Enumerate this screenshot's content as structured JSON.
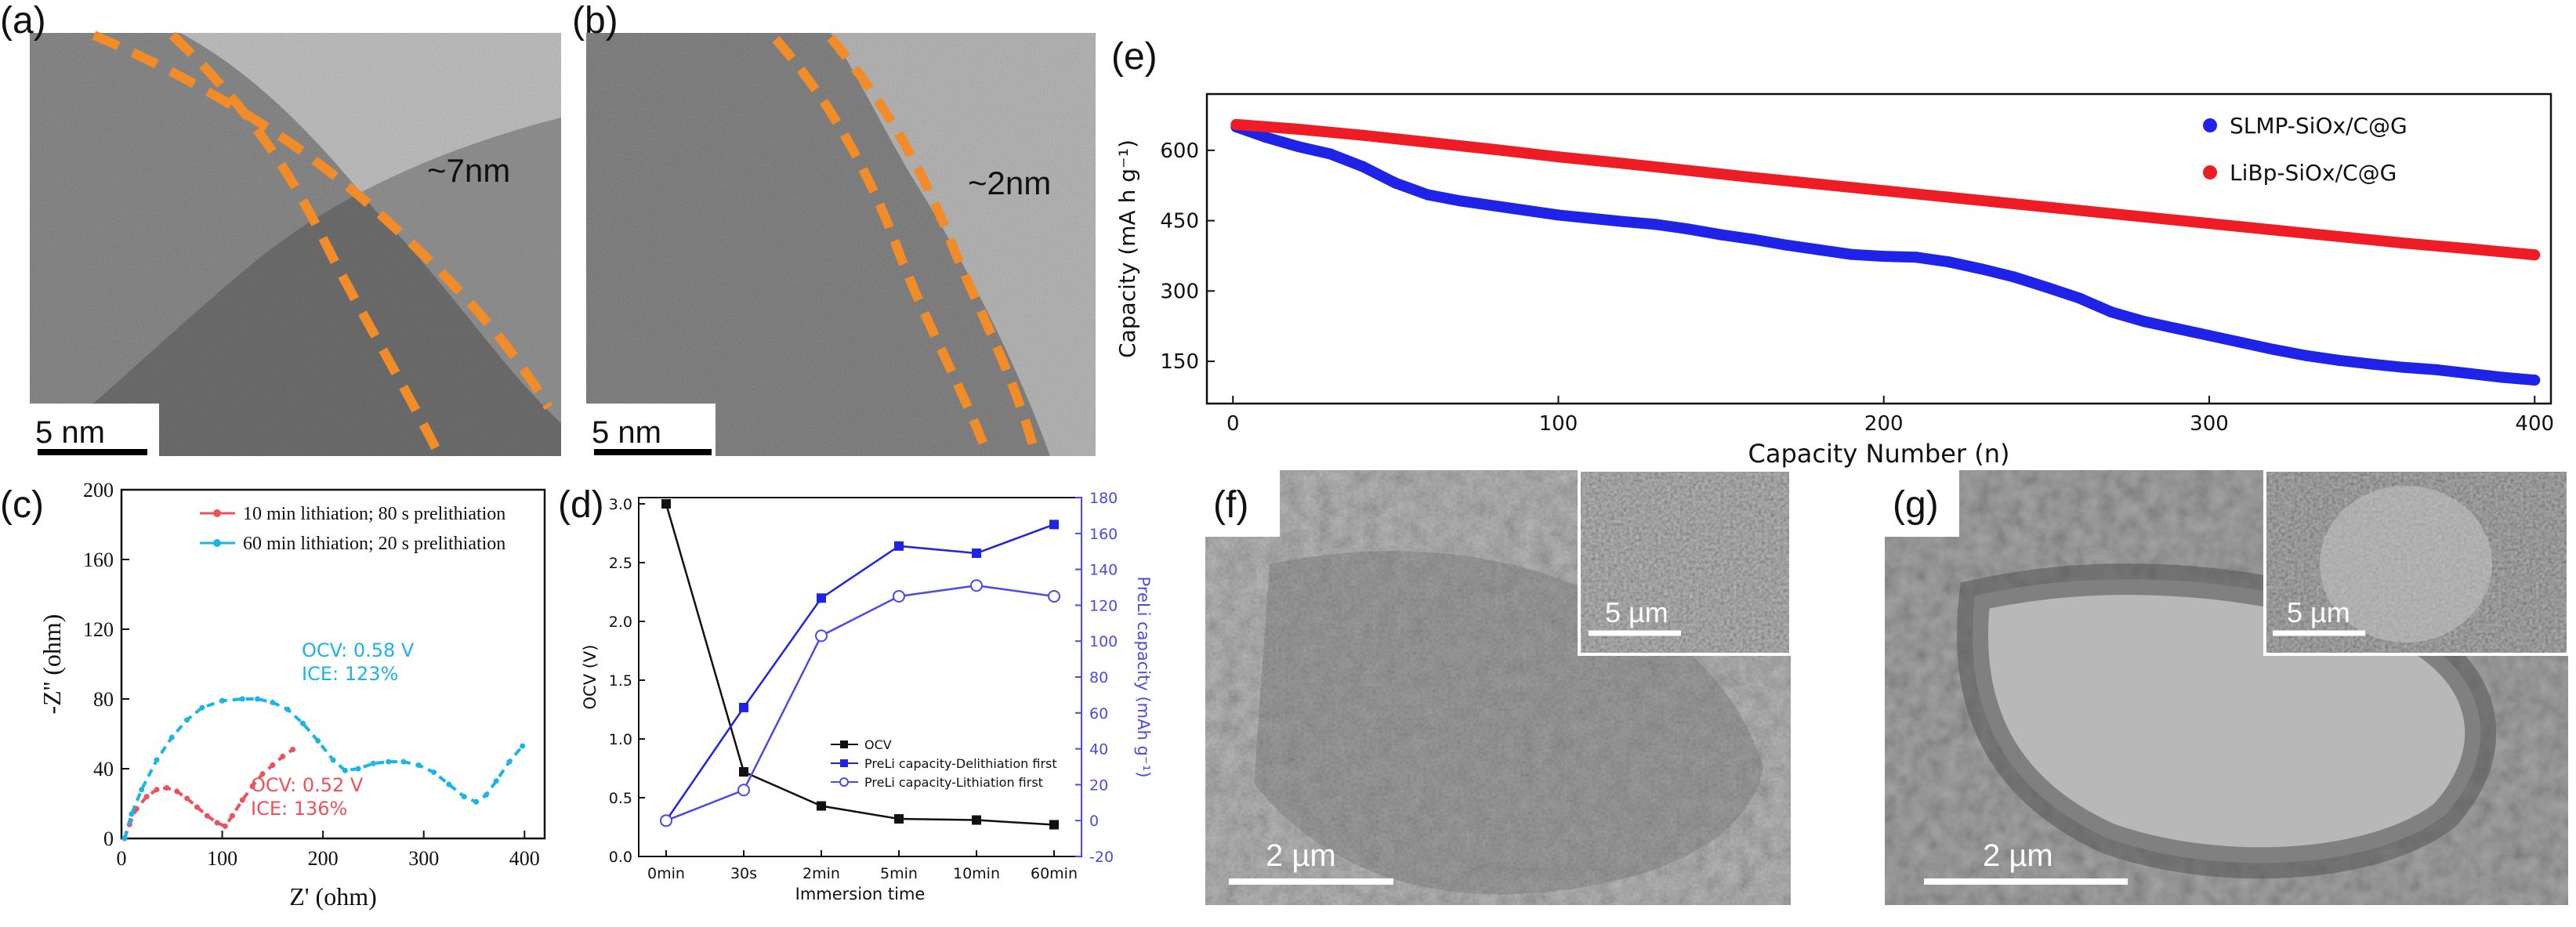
{
  "panel_labels": {
    "a": "(a)",
    "b": "(b)",
    "c": "(c)",
    "d": "(d)",
    "e": "(e)",
    "f": "(f)",
    "g": "(g)"
  },
  "micrographs": {
    "a": {
      "annotation": "~7nm",
      "scale_bar": "5 nm"
    },
    "b": {
      "annotation": "~2nm",
      "scale_bar": "5 nm"
    },
    "f": {
      "scale_bar": "2 µm",
      "inset_scale_bar": "5 µm"
    },
    "g": {
      "scale_bar": "2 µm",
      "inset_scale_bar": "5 µm"
    }
  },
  "colors": {
    "orange": "#f28c28",
    "blue": "#1f23e8",
    "red": "#ee1c25",
    "cyan": "#19b5e8",
    "pink_red": "#f0505a",
    "black": "#111111",
    "purple_blue": "#4a4af0"
  },
  "chart_data": [
    {
      "id": "c",
      "type": "line",
      "xlabel": "Z' (ohm)",
      "ylabel": "-Z'' (ohm)",
      "xlim": [
        0,
        420
      ],
      "ylim": [
        0,
        200
      ],
      "xticks": [
        0,
        100,
        200,
        300,
        400
      ],
      "yticks": [
        0,
        40,
        80,
        120,
        160,
        200
      ],
      "legend_position": "top-right",
      "series": [
        {
          "name": "10 min lithiation; 80 s prelithiation",
          "color": "#f0505a",
          "x": [
            3,
            8,
            15,
            25,
            35,
            45,
            55,
            65,
            75,
            85,
            95,
            103,
            110,
            120,
            130,
            140,
            150,
            160,
            170
          ],
          "y": [
            0,
            8,
            17,
            24,
            28,
            29,
            27,
            23,
            18,
            13,
            9,
            7,
            13,
            22,
            30,
            37,
            42,
            47,
            51
          ]
        },
        {
          "name": "60 min lithiation; 20 s prelithiation",
          "color": "#19b5e8",
          "x": [
            3,
            10,
            20,
            35,
            50,
            65,
            80,
            100,
            120,
            135,
            150,
            165,
            180,
            195,
            210,
            222,
            235,
            250,
            265,
            280,
            295,
            310,
            325,
            340,
            352,
            362,
            372,
            385,
            398
          ],
          "y": [
            0,
            14,
            28,
            45,
            58,
            68,
            75,
            79,
            80,
            80,
            78,
            74,
            66,
            56,
            45,
            39,
            40,
            43,
            44,
            44,
            42,
            38,
            31,
            24,
            21,
            25,
            33,
            44,
            53
          ]
        }
      ],
      "annotations": [
        {
          "text": "OCV: 0.58 V",
          "color": "#19b5e8"
        },
        {
          "text": "ICE: 123%",
          "color": "#19b5e8"
        },
        {
          "text": "OCV: 0.52 V",
          "color": "#f0505a"
        },
        {
          "text": "ICE: 136%",
          "color": "#f0505a"
        }
      ]
    },
    {
      "id": "d",
      "type": "line",
      "xlabel": "Immersion time",
      "ylabel": "OCV (V)",
      "y2label": "PreLi capacity (mAh g⁻¹)",
      "categories": [
        "0min",
        "30s",
        "2min",
        "5min",
        "10min",
        "60min"
      ],
      "ylim": [
        0.0,
        3.0
      ],
      "yticks": [
        0.0,
        0.5,
        1.0,
        1.5,
        2.0,
        2.5,
        3.0
      ],
      "y2lim": [
        -20,
        180
      ],
      "y2ticks": [
        -20,
        0,
        20,
        40,
        60,
        80,
        100,
        120,
        140,
        160,
        180
      ],
      "legend_position": "bottom-right",
      "series": [
        {
          "name": "OCV",
          "axis": "left",
          "color": "#111111",
          "marker": "square-filled",
          "values": [
            3.0,
            0.72,
            0.43,
            0.32,
            0.31,
            0.27
          ]
        },
        {
          "name": "PreLi capacity-Delithiation first",
          "axis": "right",
          "color": "#1f23e8",
          "marker": "square-filled",
          "values": [
            0,
            63,
            124,
            153,
            149,
            165
          ]
        },
        {
          "name": "PreLi capacity-Lithiation first",
          "axis": "right",
          "color": "#4a4af0",
          "marker": "circle-open",
          "values": [
            0,
            17,
            103,
            125,
            131,
            125
          ]
        }
      ]
    },
    {
      "id": "e",
      "type": "scatter",
      "xlabel": "Capacity Number (n)",
      "ylabel": "Capacity (mA h g⁻¹)",
      "xlim": [
        -8,
        405
      ],
      "ylim": [
        60,
        720
      ],
      "xticks": [
        0,
        100,
        200,
        300,
        400
      ],
      "yticks": [
        150,
        300,
        450,
        600
      ],
      "legend_position": "top-right",
      "series": [
        {
          "name": "SLMP-SiOx/C@G",
          "color": "#1f23e8",
          "x": [
            1,
            10,
            20,
            30,
            40,
            50,
            60,
            70,
            80,
            90,
            100,
            110,
            120,
            130,
            140,
            150,
            160,
            170,
            180,
            190,
            200,
            210,
            220,
            230,
            240,
            250,
            260,
            270,
            280,
            290,
            300,
            310,
            320,
            330,
            340,
            350,
            360,
            370,
            380,
            390,
            400
          ],
          "y": [
            650,
            628,
            608,
            592,
            565,
            530,
            505,
            492,
            482,
            472,
            462,
            455,
            448,
            442,
            432,
            420,
            410,
            398,
            388,
            378,
            374,
            372,
            362,
            347,
            330,
            308,
            285,
            255,
            235,
            220,
            205,
            190,
            175,
            162,
            152,
            144,
            137,
            132,
            124,
            116,
            110
          ]
        },
        {
          "name": "LiBp-SiOx/C@G",
          "color": "#ee1c25",
          "x": [
            1,
            20,
            40,
            60,
            80,
            100,
            120,
            140,
            160,
            180,
            200,
            220,
            240,
            260,
            280,
            300,
            320,
            340,
            360,
            380,
            400
          ],
          "y": [
            655,
            645,
            632,
            617,
            602,
            586,
            572,
            557,
            542,
            528,
            514,
            500,
            486,
            472,
            458,
            444,
            430,
            416,
            402,
            390,
            377
          ]
        }
      ]
    }
  ]
}
